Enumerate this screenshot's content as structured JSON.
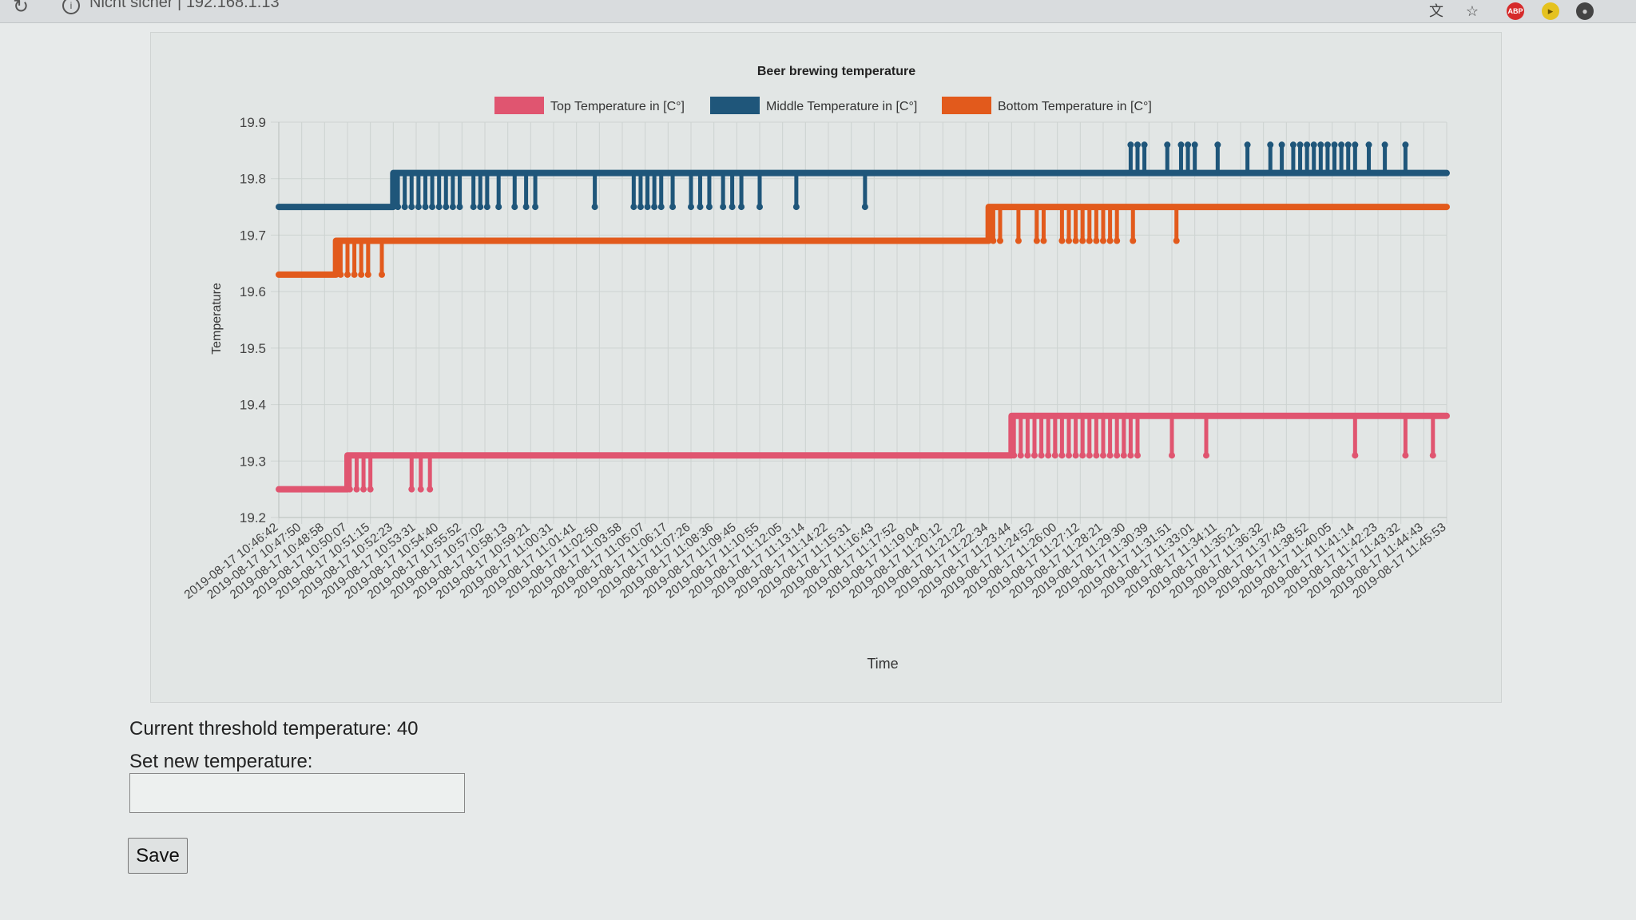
{
  "browser": {
    "security_label": "Nicht sicher",
    "separator": "|",
    "url": "192.168.1.13",
    "icons": [
      "translate-icon",
      "star-icon",
      "adblock-icon",
      "extension-icon",
      "profile-icon"
    ],
    "abp_label": "ABP"
  },
  "colors": {
    "top": "#e05570",
    "middle": "#1f567a",
    "bottom": "#e25a1c"
  },
  "chart_data": {
    "type": "line",
    "title": "Beer brewing temperature",
    "xlabel": "Time",
    "ylabel": "Temperature",
    "ylim": [
      19.2,
      19.9
    ],
    "yticks": [
      "19.9",
      "19.8",
      "19.7",
      "19.6",
      "19.5",
      "19.4",
      "19.3",
      "19.2"
    ],
    "legend_position": "top",
    "grid": true,
    "categories": [
      "2019-08-17 10:46:42",
      "2019-08-17 10:47:50",
      "2019-08-17 10:48:58",
      "2019-08-17 10:50:07",
      "2019-08-17 10:51:15",
      "2019-08-17 10:52:23",
      "2019-08-17 10:53:31",
      "2019-08-17 10:54:40",
      "2019-08-17 10:55:52",
      "2019-08-17 10:57:02",
      "2019-08-17 10:58:13",
      "2019-08-17 10:59:21",
      "2019-08-17 11:00:31",
      "2019-08-17 11:01:41",
      "2019-08-17 11:02:50",
      "2019-08-17 11:03:58",
      "2019-08-17 11:05:07",
      "2019-08-17 11:06:17",
      "2019-08-17 11:07:26",
      "2019-08-17 11:08:36",
      "2019-08-17 11:09:45",
      "2019-08-17 11:10:55",
      "2019-08-17 11:12:05",
      "2019-08-17 11:13:14",
      "2019-08-17 11:14:22",
      "2019-08-17 11:15:31",
      "2019-08-17 11:16:43",
      "2019-08-17 11:17:52",
      "2019-08-17 11:19:04",
      "2019-08-17 11:20:12",
      "2019-08-17 11:21:22",
      "2019-08-17 11:22:34",
      "2019-08-17 11:23:44",
      "2019-08-17 11:24:52",
      "2019-08-17 11:26:00",
      "2019-08-17 11:27:12",
      "2019-08-17 11:28:21",
      "2019-08-17 11:29:30",
      "2019-08-17 11:30:39",
      "2019-08-17 11:31:51",
      "2019-08-17 11:33:01",
      "2019-08-17 11:34:11",
      "2019-08-17 11:35:21",
      "2019-08-17 11:36:32",
      "2019-08-17 11:37:43",
      "2019-08-17 11:38:52",
      "2019-08-17 11:40:05",
      "2019-08-17 11:41:14",
      "2019-08-17 11:42:23",
      "2019-08-17 11:43:32",
      "2019-08-17 11:44:43",
      "2019-08-17 11:45:53"
    ],
    "series": [
      {
        "name": "Top Temperature in [C°]",
        "base": [
          [
            0,
            19.25
          ],
          [
            3,
            19.25
          ],
          [
            3,
            19.31
          ],
          [
            32,
            19.31
          ],
          [
            32,
            19.38
          ],
          [
            51,
            19.38
          ]
        ],
        "spikes": [
          [
            3.1,
            19.25
          ],
          [
            3.4,
            19.25
          ],
          [
            3.7,
            19.25
          ],
          [
            4.0,
            19.25
          ],
          [
            5.8,
            19.25
          ],
          [
            6.2,
            19.25
          ],
          [
            6.6,
            19.25
          ],
          [
            32.1,
            19.31
          ],
          [
            32.4,
            19.31
          ],
          [
            32.7,
            19.31
          ],
          [
            33.0,
            19.31
          ],
          [
            33.3,
            19.31
          ],
          [
            33.6,
            19.31
          ],
          [
            33.9,
            19.31
          ],
          [
            34.2,
            19.31
          ],
          [
            34.5,
            19.31
          ],
          [
            34.8,
            19.31
          ],
          [
            35.1,
            19.31
          ],
          [
            35.4,
            19.31
          ],
          [
            35.7,
            19.31
          ],
          [
            36.0,
            19.31
          ],
          [
            36.3,
            19.31
          ],
          [
            36.6,
            19.31
          ],
          [
            36.9,
            19.31
          ],
          [
            37.2,
            19.31
          ],
          [
            37.5,
            19.31
          ],
          [
            39.0,
            19.31
          ],
          [
            40.5,
            19.31
          ],
          [
            47.0,
            19.31
          ],
          [
            49.2,
            19.31
          ],
          [
            50.4,
            19.31
          ]
        ]
      },
      {
        "name": "Middle Temperature in [C°]",
        "base": [
          [
            0,
            19.75
          ],
          [
            5,
            19.75
          ],
          [
            5,
            19.81
          ],
          [
            51,
            19.81
          ]
        ],
        "spikes": [
          [
            5.2,
            19.75
          ],
          [
            5.5,
            19.75
          ],
          [
            5.8,
            19.75
          ],
          [
            6.1,
            19.75
          ],
          [
            6.4,
            19.75
          ],
          [
            6.7,
            19.75
          ],
          [
            7.0,
            19.75
          ],
          [
            7.3,
            19.75
          ],
          [
            7.6,
            19.75
          ],
          [
            7.9,
            19.75
          ],
          [
            8.5,
            19.75
          ],
          [
            8.8,
            19.75
          ],
          [
            9.1,
            19.75
          ],
          [
            9.6,
            19.75
          ],
          [
            10.3,
            19.75
          ],
          [
            10.8,
            19.75
          ],
          [
            11.2,
            19.75
          ],
          [
            13.8,
            19.75
          ],
          [
            15.5,
            19.75
          ],
          [
            15.8,
            19.75
          ],
          [
            16.1,
            19.75
          ],
          [
            16.4,
            19.75
          ],
          [
            16.7,
            19.75
          ],
          [
            17.2,
            19.75
          ],
          [
            18.0,
            19.75
          ],
          [
            18.4,
            19.75
          ],
          [
            18.8,
            19.75
          ],
          [
            19.4,
            19.75
          ],
          [
            19.8,
            19.75
          ],
          [
            20.2,
            19.75
          ],
          [
            21.0,
            19.75
          ],
          [
            22.6,
            19.75
          ],
          [
            25.6,
            19.75
          ],
          [
            37.2,
            19.86
          ],
          [
            37.5,
            19.86
          ],
          [
            37.8,
            19.86
          ],
          [
            38.8,
            19.86
          ],
          [
            39.4,
            19.86
          ],
          [
            39.7,
            19.86
          ],
          [
            40.0,
            19.86
          ],
          [
            41.0,
            19.86
          ],
          [
            42.3,
            19.86
          ],
          [
            43.3,
            19.86
          ],
          [
            43.8,
            19.86
          ],
          [
            44.3,
            19.86
          ],
          [
            44.6,
            19.86
          ],
          [
            44.9,
            19.86
          ],
          [
            45.2,
            19.86
          ],
          [
            45.5,
            19.86
          ],
          [
            45.8,
            19.86
          ],
          [
            46.1,
            19.86
          ],
          [
            46.4,
            19.86
          ],
          [
            46.7,
            19.86
          ],
          [
            47.0,
            19.86
          ],
          [
            47.6,
            19.86
          ],
          [
            48.3,
            19.86
          ],
          [
            49.2,
            19.86
          ]
        ]
      },
      {
        "name": "Bottom Temperature in [C°]",
        "base": [
          [
            0,
            19.63
          ],
          [
            2.5,
            19.63
          ],
          [
            2.5,
            19.69
          ],
          [
            31,
            19.69
          ],
          [
            31,
            19.75
          ],
          [
            51,
            19.75
          ]
        ],
        "spikes": [
          [
            2.7,
            19.63
          ],
          [
            3.0,
            19.63
          ],
          [
            3.3,
            19.63
          ],
          [
            3.6,
            19.63
          ],
          [
            3.9,
            19.63
          ],
          [
            4.5,
            19.63
          ],
          [
            31.2,
            19.69
          ],
          [
            31.5,
            19.69
          ],
          [
            32.3,
            19.69
          ],
          [
            33.1,
            19.69
          ],
          [
            33.4,
            19.69
          ],
          [
            34.2,
            19.69
          ],
          [
            34.5,
            19.69
          ],
          [
            34.8,
            19.69
          ],
          [
            35.1,
            19.69
          ],
          [
            35.4,
            19.69
          ],
          [
            35.7,
            19.69
          ],
          [
            36.0,
            19.69
          ],
          [
            36.3,
            19.69
          ],
          [
            36.6,
            19.69
          ],
          [
            37.3,
            19.69
          ],
          [
            39.2,
            19.69
          ]
        ]
      }
    ]
  },
  "form": {
    "threshold_label": "Current threshold temperature: 40",
    "set_label": "Set new temperature:",
    "input_value": "",
    "input_placeholder": "",
    "save_label": "Save"
  }
}
